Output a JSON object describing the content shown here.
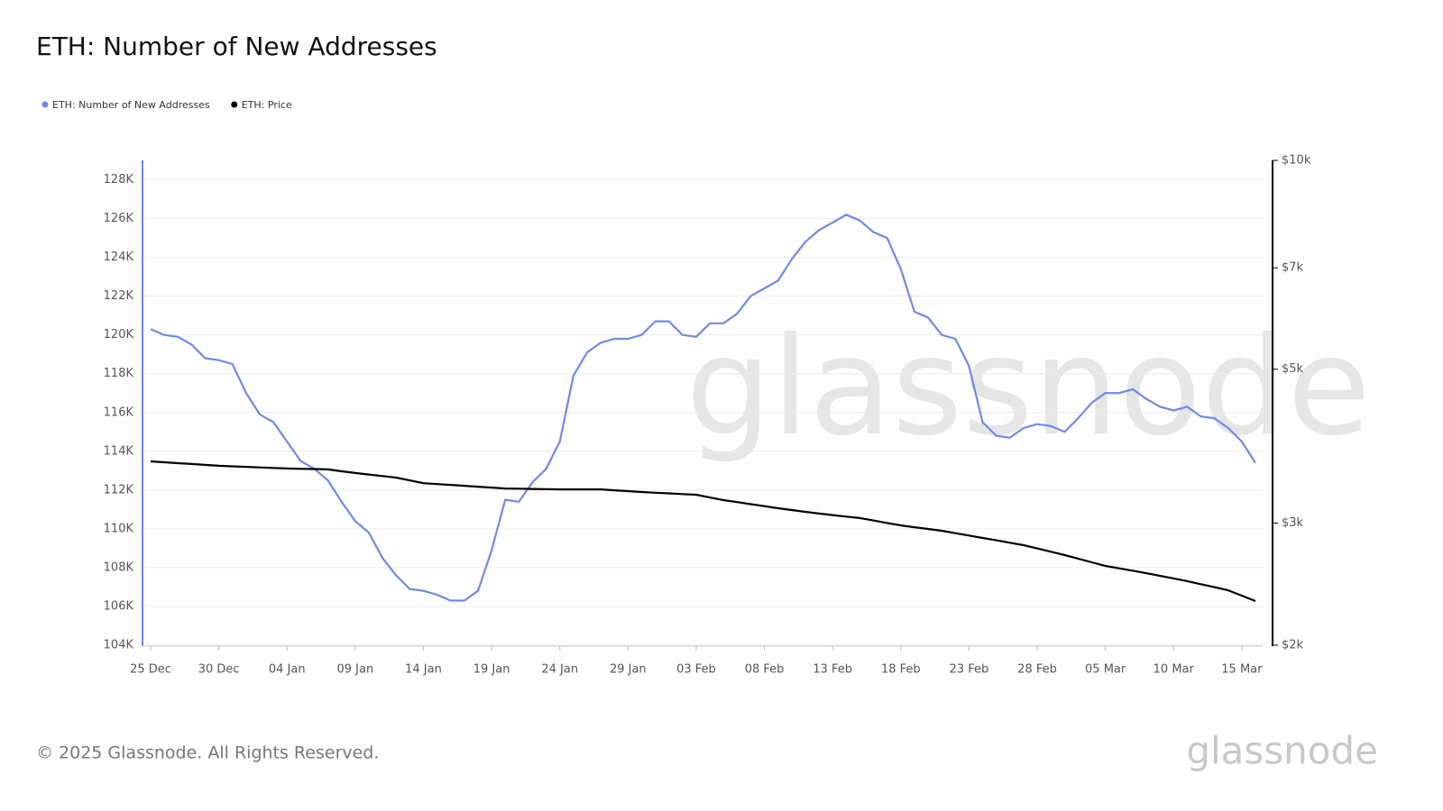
{
  "chart_data": {
    "type": "line",
    "title": "ETH: Number of New Addresses",
    "copyright": "© 2025 Glassnode. All Rights Reserved.",
    "watermark": "glassnode",
    "categories": [
      "25 Dec",
      null,
      null,
      null,
      null,
      "30 Dec",
      null,
      null,
      null,
      null,
      "04 Jan",
      null,
      null,
      null,
      null,
      "09 Jan",
      null,
      null,
      null,
      null,
      "14 Jan",
      null,
      null,
      null,
      null,
      "19 Jan",
      null,
      null,
      null,
      null,
      "24 Jan",
      null,
      null,
      null,
      null,
      "29 Jan",
      null,
      null,
      null,
      null,
      "03 Feb",
      null,
      null,
      null,
      null,
      "08 Feb",
      null,
      null,
      null,
      null,
      "13 Feb",
      null,
      null,
      null,
      null,
      "18 Feb",
      null,
      null,
      null,
      null,
      "23 Feb",
      null,
      null,
      null,
      null,
      "28 Feb",
      null,
      null,
      null,
      null,
      "05 Mar",
      null,
      null,
      null,
      null,
      "10 Mar",
      null,
      null,
      null,
      null,
      "15 Mar",
      null
    ],
    "series": [
      {
        "name": "ETH: Number of New Addresses",
        "color": "#7089e8",
        "axis": "y",
        "values": [
          120300,
          120000,
          119900,
          119500,
          118800,
          118700,
          118500,
          117000,
          115900,
          115500,
          114500,
          113500,
          113100,
          112500,
          111400,
          110400,
          109800,
          108500,
          107600,
          106900,
          106800,
          106600,
          106300,
          106300,
          106800,
          108900,
          111500,
          111400,
          112400,
          113100,
          114500,
          117900,
          119100,
          119600,
          119800,
          119800,
          120000,
          120700,
          120700,
          120000,
          119900,
          120600,
          120600,
          121100,
          122000,
          122400,
          122800,
          123900,
          124800,
          125400,
          125800,
          126200,
          125900,
          125300,
          125000,
          123400,
          121200,
          120900,
          120000,
          119800,
          118400,
          115500,
          114800,
          114700,
          115200,
          115400,
          115300,
          115000,
          115700,
          116500,
          117000,
          117000,
          117200,
          116700,
          116300,
          116100,
          116300,
          115800,
          115700,
          115200,
          114500,
          113400
        ]
      },
      {
        "name": "ETH: Price",
        "color": "#000000",
        "axis": "y2",
        "values": [
          3682,
          3671,
          3660,
          3650,
          3639,
          3628,
          3622,
          3615,
          3609,
          3602,
          3596,
          3592,
          3589,
          3585,
          3563,
          3542,
          3524,
          3507,
          3489,
          3457,
          3425,
          3415,
          3405,
          3395,
          3385,
          3375,
          3365,
          3363,
          3360,
          3358,
          3355,
          3355,
          3355,
          3355,
          3345,
          3336,
          3326,
          3318,
          3311,
          3303,
          3296,
          3266,
          3237,
          3216,
          3194,
          3173,
          3151,
          3133,
          3114,
          3096,
          3081,
          3065,
          3050,
          3026,
          3001,
          2977,
          2959,
          2942,
          2924,
          2901,
          2878,
          2855,
          2833,
          2810,
          2788,
          2758,
          2728,
          2698,
          2666,
          2634,
          2602,
          2581,
          2561,
          2540,
          2518,
          2496,
          2474,
          2449,
          2425,
          2400,
          2358,
          2316
        ]
      }
    ],
    "ylim": [
      104000,
      129000
    ],
    "yticks": [
      {
        "value": 104000,
        "label": "104K"
      },
      {
        "value": 106000,
        "label": "106K"
      },
      {
        "value": 108000,
        "label": "108K"
      },
      {
        "value": 110000,
        "label": "110K"
      },
      {
        "value": 112000,
        "label": "112K"
      },
      {
        "value": 114000,
        "label": "114K"
      },
      {
        "value": 116000,
        "label": "116K"
      },
      {
        "value": 118000,
        "label": "118K"
      },
      {
        "value": 120000,
        "label": "120K"
      },
      {
        "value": 122000,
        "label": "122K"
      },
      {
        "value": 124000,
        "label": "124K"
      },
      {
        "value": 126000,
        "label": "126K"
      },
      {
        "value": 128000,
        "label": "128K"
      }
    ],
    "y2lim": [
      2000,
      10000
    ],
    "y2scale": "log",
    "y2ticks": [
      {
        "value": 2000,
        "label": "$2k"
      },
      {
        "value": 3000,
        "label": "$3k"
      },
      {
        "value": 5000,
        "label": "$5k"
      },
      {
        "value": 7000,
        "label": "$7k"
      },
      {
        "value": 10000,
        "label": "$10k"
      }
    ],
    "grid": true,
    "legend": "top-left"
  }
}
